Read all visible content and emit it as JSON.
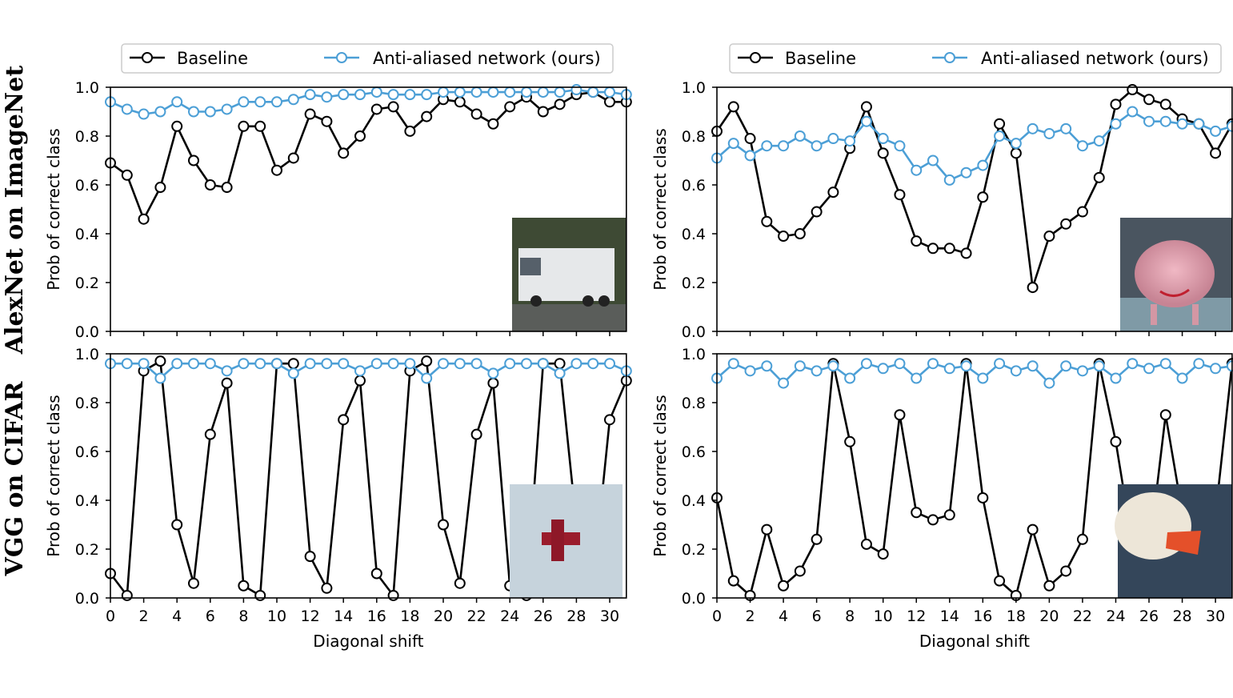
{
  "row_labels": [
    "AlexNet on ImageNet",
    "VGG on CIFAR"
  ],
  "legend": {
    "baseline": "Baseline",
    "antialiased": "Anti-aliased network (ours)"
  },
  "colors": {
    "baseline": "#000000",
    "antialiased": "#4c9fd6"
  },
  "chart_data": [
    {
      "type": "line",
      "row": 0,
      "col": 0,
      "xlabel": "",
      "ylabel": "Prob of correct class",
      "xlim": [
        0,
        31
      ],
      "ylim": [
        0,
        1
      ],
      "xticks": [
        0,
        2,
        4,
        6,
        8,
        10,
        12,
        14,
        16,
        18,
        20,
        22,
        24,
        26,
        28,
        30
      ],
      "yticks": [
        "0.0",
        "0.2",
        "0.4",
        "0.6",
        "0.8",
        "1.0"
      ],
      "inset_image": "garbage truck photo",
      "series": [
        {
          "name": "Baseline",
          "values": [
            0.69,
            0.64,
            0.46,
            0.59,
            0.84,
            0.7,
            0.6,
            0.59,
            0.84,
            0.84,
            0.66,
            0.71,
            0.89,
            0.86,
            0.73,
            0.8,
            0.91,
            0.92,
            0.82,
            0.88,
            0.95,
            0.94,
            0.89,
            0.85,
            0.92,
            0.96,
            0.9,
            0.93,
            0.97,
            0.98,
            0.94,
            0.94
          ]
        },
        {
          "name": "Anti-aliased network (ours)",
          "values": [
            0.94,
            0.91,
            0.89,
            0.9,
            0.94,
            0.9,
            0.9,
            0.91,
            0.94,
            0.94,
            0.94,
            0.95,
            0.97,
            0.96,
            0.97,
            0.97,
            0.98,
            0.97,
            0.97,
            0.97,
            0.98,
            0.98,
            0.98,
            0.98,
            0.98,
            0.98,
            0.98,
            0.98,
            0.99,
            0.98,
            0.98,
            0.97
          ]
        }
      ]
    },
    {
      "type": "line",
      "row": 0,
      "col": 1,
      "xlabel": "",
      "ylabel": "Prob of correct class",
      "xlim": [
        0,
        31
      ],
      "ylim": [
        0,
        1
      ],
      "xticks": [
        0,
        2,
        4,
        6,
        8,
        10,
        12,
        14,
        16,
        18,
        20,
        22,
        24,
        26,
        28,
        30
      ],
      "yticks": [
        "0.0",
        "0.2",
        "0.4",
        "0.6",
        "0.8",
        "1.0"
      ],
      "inset_image": "pink pig toy photo",
      "series": [
        {
          "name": "Baseline",
          "values": [
            0.82,
            0.92,
            0.79,
            0.45,
            0.39,
            0.4,
            0.49,
            0.57,
            0.75,
            0.92,
            0.73,
            0.56,
            0.37,
            0.34,
            0.34,
            0.32,
            0.55,
            0.85,
            0.73,
            0.18,
            0.39,
            0.44,
            0.49,
            0.63,
            0.93,
            0.99,
            0.95,
            0.93,
            0.87,
            0.85,
            0.73,
            0.85
          ]
        },
        {
          "name": "Anti-aliased network (ours)",
          "values": [
            0.71,
            0.77,
            0.72,
            0.76,
            0.76,
            0.8,
            0.76,
            0.79,
            0.78,
            0.86,
            0.79,
            0.76,
            0.66,
            0.7,
            0.62,
            0.65,
            0.68,
            0.8,
            0.77,
            0.83,
            0.81,
            0.83,
            0.76,
            0.78,
            0.85,
            0.9,
            0.86,
            0.86,
            0.85,
            0.85,
            0.82,
            0.84
          ]
        }
      ]
    },
    {
      "type": "line",
      "row": 1,
      "col": 0,
      "xlabel": "Diagonal shift",
      "ylabel": "Prob of correct class",
      "xlim": [
        0,
        31
      ],
      "ylim": [
        0,
        1
      ],
      "xticks": [
        0,
        2,
        4,
        6,
        8,
        10,
        12,
        14,
        16,
        18,
        20,
        22,
        24,
        26,
        28,
        30
      ],
      "yticks": [
        "0.0",
        "0.2",
        "0.4",
        "0.6",
        "0.8",
        "1.0"
      ],
      "inset_image": "red airplane CIFAR image",
      "series": [
        {
          "name": "Baseline",
          "values": [
            0.1,
            0.01,
            0.93,
            0.97,
            0.3,
            0.06,
            0.67,
            0.88,
            0.05,
            0.01,
            0.96,
            0.96,
            0.17,
            0.04,
            0.73,
            0.89,
            0.1,
            0.01,
            0.93,
            0.97,
            0.3,
            0.06,
            0.67,
            0.88,
            0.05,
            0.01,
            0.96,
            0.96,
            0.3,
            0.06,
            0.73,
            0.89
          ]
        },
        {
          "name": "Anti-aliased network (ours)",
          "values": [
            0.96,
            0.96,
            0.96,
            0.9,
            0.96,
            0.96,
            0.96,
            0.93,
            0.96,
            0.96,
            0.96,
            0.92,
            0.96,
            0.96,
            0.96,
            0.93,
            0.96,
            0.96,
            0.96,
            0.9,
            0.96,
            0.96,
            0.96,
            0.92,
            0.96,
            0.96,
            0.96,
            0.92,
            0.96,
            0.96,
            0.96,
            0.93
          ]
        }
      ]
    },
    {
      "type": "line",
      "row": 1,
      "col": 1,
      "xlabel": "Diagonal shift",
      "ylabel": "Prob of correct class",
      "xlim": [
        0,
        31
      ],
      "ylim": [
        0,
        1
      ],
      "xticks": [
        0,
        2,
        4,
        6,
        8,
        10,
        12,
        14,
        16,
        18,
        20,
        22,
        24,
        26,
        28,
        30
      ],
      "yticks": [
        "0.0",
        "0.2",
        "0.4",
        "0.6",
        "0.8",
        "1.0"
      ],
      "inset_image": "white duck CIFAR image",
      "series": [
        {
          "name": "Baseline",
          "values": [
            0.41,
            0.07,
            0.01,
            0.28,
            0.05,
            0.11,
            0.24,
            0.96,
            0.64,
            0.22,
            0.18,
            0.75,
            0.35,
            0.32,
            0.34,
            0.96,
            0.41,
            0.07,
            0.01,
            0.28,
            0.05,
            0.11,
            0.24,
            0.96,
            0.64,
            0.22,
            0.18,
            0.75,
            0.35,
            0.32,
            0.34,
            0.96
          ]
        },
        {
          "name": "Anti-aliased network (ours)",
          "values": [
            0.9,
            0.96,
            0.93,
            0.95,
            0.88,
            0.95,
            0.93,
            0.95,
            0.9,
            0.96,
            0.94,
            0.96,
            0.9,
            0.96,
            0.94,
            0.95,
            0.9,
            0.96,
            0.93,
            0.95,
            0.88,
            0.95,
            0.93,
            0.95,
            0.9,
            0.96,
            0.94,
            0.96,
            0.9,
            0.96,
            0.94,
            0.95
          ]
        }
      ]
    }
  ]
}
